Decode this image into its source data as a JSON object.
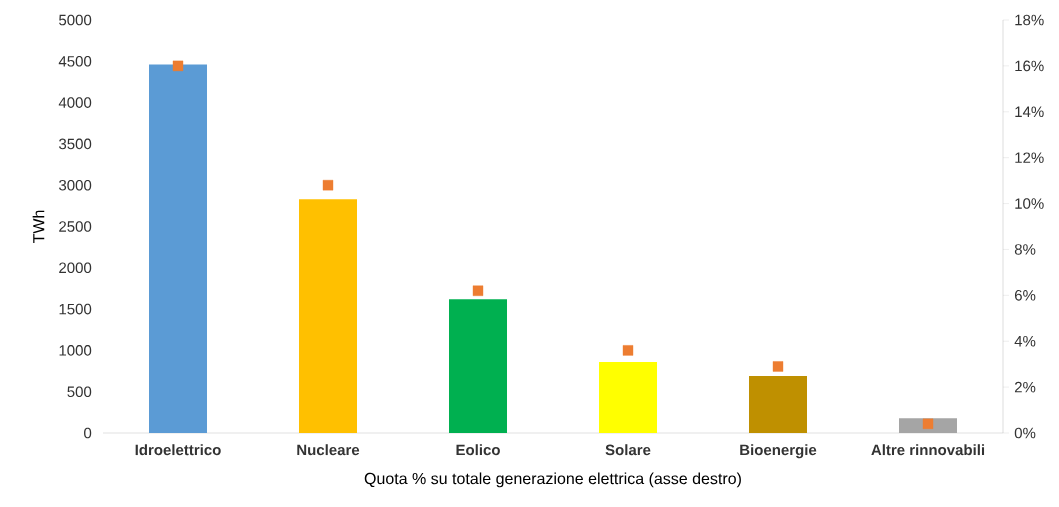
{
  "chart_data": {
    "type": "bar",
    "xlabel": "Quota % su totale generazione elettrica (asse destro)",
    "ylabel": "TWh",
    "categories": [
      "Idroelettrico",
      "Nucleare",
      "Eolico",
      "Solare",
      "Bioenergie",
      "Altre rinnovabili"
    ],
    "series": [
      {
        "colors": [
          "#5b9bd5",
          "#ffc000",
          "#00b050",
          "#ffff00",
          "#bf9000",
          "#a5a5a5"
        ],
        "values": [
          4460,
          2830,
          1620,
          860,
          690,
          180
        ]
      },
      {
        "type": "scatter",
        "axis": "y2",
        "color": "#ed7d31",
        "marker": "square",
        "values": [
          16.0,
          10.8,
          6.2,
          3.6,
          2.9,
          0.4
        ]
      }
    ],
    "ylim": [
      0,
      5000
    ],
    "yticks": [
      0,
      500,
      1000,
      1500,
      2000,
      2500,
      3000,
      3500,
      4000,
      4500,
      5000
    ],
    "y2lim": [
      0,
      18
    ],
    "y2ticks": [
      {
        "value": 0,
        "label": "0%"
      },
      {
        "value": 2,
        "label": "2%"
      },
      {
        "value": 4,
        "label": "4%"
      },
      {
        "value": 6,
        "label": "6%"
      },
      {
        "value": 8,
        "label": "8%"
      },
      {
        "value": 10,
        "label": "10%"
      },
      {
        "value": 12,
        "label": "12%"
      },
      {
        "value": 14,
        "label": "14%"
      },
      {
        "value": 16,
        "label": "16%"
      },
      {
        "value": 18,
        "label": "18%"
      }
    ]
  }
}
